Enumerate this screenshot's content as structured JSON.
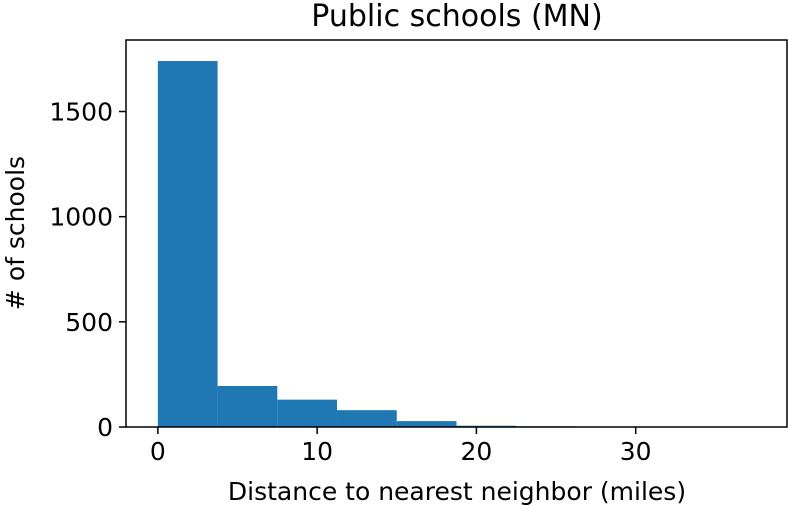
{
  "chart_data": {
    "type": "histogram",
    "title": "Public schools (MN)",
    "xlabel": "Distance to nearest neighbor (miles)",
    "ylabel": "# of schools",
    "bin_edges": [
      0,
      3.75,
      7.5,
      11.25,
      15,
      18.75,
      22.5,
      26.25,
      30,
      33.75,
      37.5
    ],
    "values": [
      1740,
      195,
      130,
      80,
      28,
      6,
      3,
      1,
      1,
      1
    ],
    "xlim": [
      -2,
      39.5
    ],
    "ylim": [
      0,
      1840
    ],
    "xticks": [
      0,
      10,
      20,
      30
    ],
    "xtick_labels": [
      "0",
      "10",
      "20",
      "30"
    ],
    "yticks": [
      0,
      500,
      1000,
      1500
    ],
    "ytick_labels": [
      "0",
      "500",
      "1000",
      "1500"
    ],
    "grid": false,
    "bar_color": "#1f77b4"
  }
}
